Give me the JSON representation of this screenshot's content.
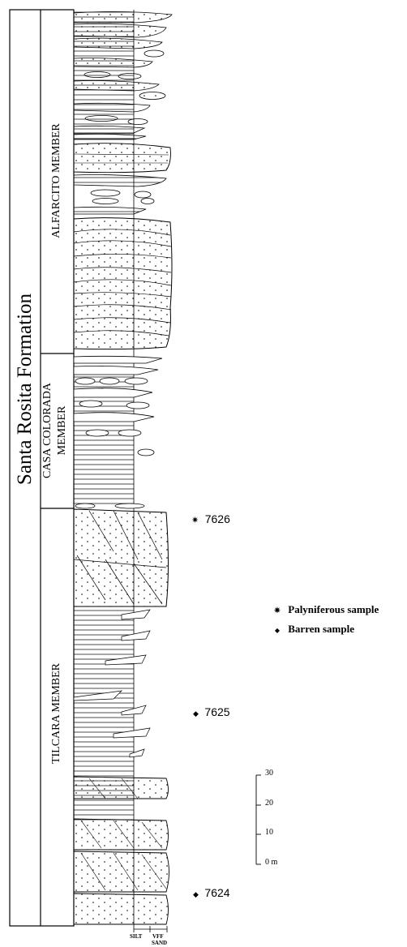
{
  "formation": {
    "name": "Santa Rosita Formation"
  },
  "members": [
    {
      "name": "ALFARCITO MEMBER"
    },
    {
      "name": "CASA COLORADA MEMBER",
      "line1": "CASA COLORADA",
      "line2": "MEMBER"
    },
    {
      "name": "TILCARA MEMBER"
    }
  ],
  "samples": [
    {
      "id": "7626",
      "kind": "palyniferous",
      "symbol": "✷"
    },
    {
      "id": "7625",
      "kind": "barren",
      "symbol": "◆"
    },
    {
      "id": "7624",
      "kind": "barren",
      "symbol": "◆"
    }
  ],
  "legend": {
    "palyniferous": {
      "symbol": "✷",
      "label": "Palyniferous sample"
    },
    "barren": {
      "symbol": "◆",
      "label": "Barren sample"
    }
  },
  "scale": {
    "ticks": [
      "30",
      "20",
      "10",
      "0 m"
    ]
  },
  "grain_axis": {
    "silt": "SILT",
    "vff": "VFF",
    "sand": "SAND"
  }
}
